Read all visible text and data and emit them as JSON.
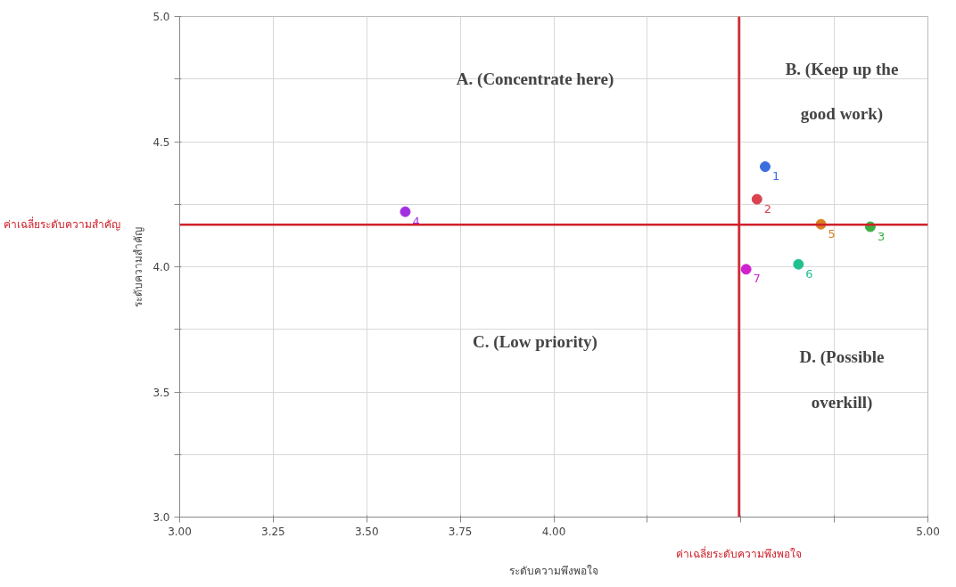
{
  "chart_data": {
    "type": "scatter",
    "xlabel": "ระดับความพึงพอใจ",
    "ylabel": "ระดับความสำคัญ",
    "xlim": [
      3,
      5
    ],
    "ylim": [
      3,
      5
    ],
    "xticks": [
      {
        "value": 3,
        "label": "3.00"
      },
      {
        "value": 3.25,
        "label": "3.25"
      },
      {
        "value": 3.5,
        "label": "3.50"
      },
      {
        "value": 3.75,
        "label": "3.75"
      },
      {
        "value": 4,
        "label": "4.00"
      },
      {
        "value": 4.25,
        "label": null
      },
      {
        "value": 4.5,
        "label": null
      },
      {
        "value": 4.75,
        "label": null
      },
      {
        "value": 5,
        "label": "5.00"
      }
    ],
    "yticks": [
      {
        "value": 3,
        "label": "3.0"
      },
      {
        "value": 3.25,
        "label": null
      },
      {
        "value": 3.5,
        "label": "3.5"
      },
      {
        "value": 3.75,
        "label": null
      },
      {
        "value": 4,
        "label": "4.0"
      },
      {
        "value": 4.25,
        "label": null
      },
      {
        "value": 4.5,
        "label": "4.5"
      },
      {
        "value": 4.75,
        "label": null
      },
      {
        "value": 5,
        "label": "5.0"
      }
    ],
    "grid": true,
    "marker": "circle",
    "legend": false,
    "series": [
      {
        "name": "1",
        "color": "#3b6fe0",
        "x": [
          4.565
        ],
        "values": [
          4.4
        ]
      },
      {
        "name": "2",
        "color": "#d9434f",
        "x": [
          4.543
        ],
        "values": [
          4.27
        ]
      },
      {
        "name": "3",
        "color": "#3cb043",
        "x": [
          4.846
        ],
        "values": [
          4.16
        ]
      },
      {
        "name": "4",
        "color": "#a030e0",
        "x": [
          3.603
        ],
        "values": [
          4.22
        ]
      },
      {
        "name": "5",
        "color": "#d98020",
        "x": [
          4.714
        ],
        "values": [
          4.17
        ]
      },
      {
        "name": "6",
        "color": "#20c090",
        "x": [
          4.654
        ],
        "values": [
          4.01
        ]
      },
      {
        "name": "7",
        "color": "#d020d0",
        "x": [
          4.514
        ],
        "values": [
          3.99
        ]
      }
    ],
    "ref_lines": [
      {
        "axis": "x",
        "value": 4.495,
        "label": "ค่าเฉลี่ยระดับความพึงพอใจ",
        "color": "#d0202a"
      },
      {
        "axis": "y",
        "value": 4.168,
        "label": "ค่าเฉลี่ยระดับความสำคัญ",
        "color": "#d0202a"
      }
    ],
    "annotations": [
      "A. (Concentrate here)",
      "B. (Keep up the\ngood work)",
      "C. (Low priority)",
      "D. (Possible\noverkill)"
    ]
  }
}
